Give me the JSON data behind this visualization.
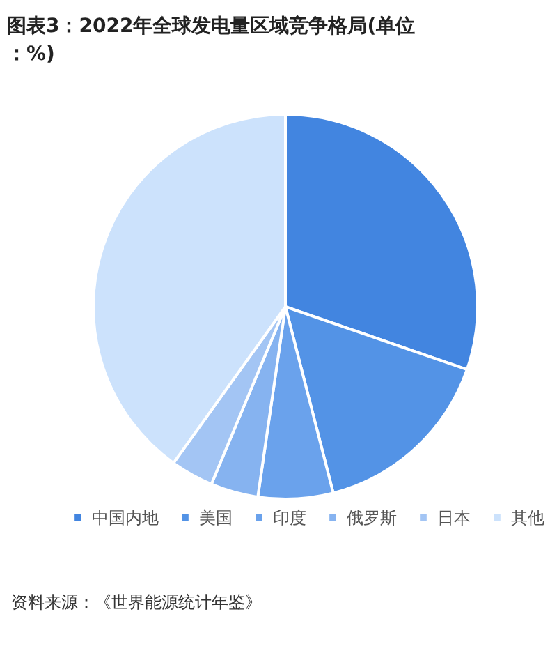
{
  "chart_data": {
    "type": "pie",
    "title": "图表3：2022年全球发电量区域竞争格局(单位：%)",
    "categories": [
      "中国内地",
      "美国",
      "印度",
      "俄罗斯",
      "日本",
      "其他"
    ],
    "values": [
      30.3,
      15.7,
      6.3,
      4.0,
      3.6,
      40.1
    ],
    "colors": [
      "#4285e0",
      "#5393e6",
      "#6aa2ec",
      "#86b3f0",
      "#a3c5f4",
      "#cce2fc"
    ],
    "legend": "bottom",
    "annotations": [
      "资料来源：《世界能源统计年鉴》"
    ]
  }
}
